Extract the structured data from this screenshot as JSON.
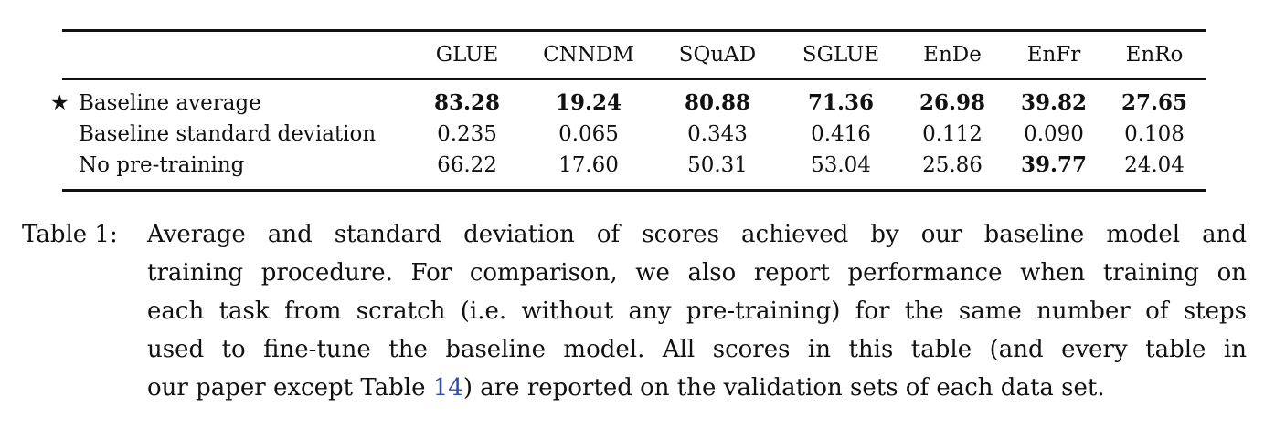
{
  "table": {
    "columns": [
      "GLUE",
      "CNNDM",
      "SQuAD",
      "SGLUE",
      "EnDe",
      "EnFr",
      "EnRo"
    ],
    "rows": [
      {
        "marker": "★",
        "label": "Baseline average",
        "values": [
          "83.28",
          "19.24",
          "80.88",
          "71.36",
          "26.98",
          "39.82",
          "27.65"
        ],
        "bold": [
          true,
          true,
          true,
          true,
          true,
          true,
          true
        ]
      },
      {
        "marker": "",
        "label": "Baseline standard deviation",
        "values": [
          "0.235",
          "0.065",
          "0.343",
          "0.416",
          "0.112",
          "0.090",
          "0.108"
        ],
        "bold": [
          false,
          false,
          false,
          false,
          false,
          false,
          false
        ]
      },
      {
        "marker": "",
        "label": "No pre-training",
        "values": [
          "66.22",
          "17.60",
          "50.31",
          "53.04",
          "25.86",
          "39.77",
          "24.04"
        ],
        "bold": [
          false,
          false,
          false,
          false,
          false,
          true,
          false
        ]
      }
    ]
  },
  "caption": {
    "label": "Table 1:",
    "lines": [
      "Average and standard deviation of scores achieved by our baseline model and",
      "training procedure. For comparison, we also report performance when training on",
      "each task from scratch (i.e. without any pre-training) for the same number of steps",
      "used to fine-tune the baseline model. All scores in this table (and every table in"
    ],
    "last_line_before": "our paper except Table ",
    "table_ref": "14",
    "last_line_after": ") are reported on the validation sets of each data set."
  },
  "colors": {
    "text": "#111111",
    "link": "#2b4db4"
  }
}
